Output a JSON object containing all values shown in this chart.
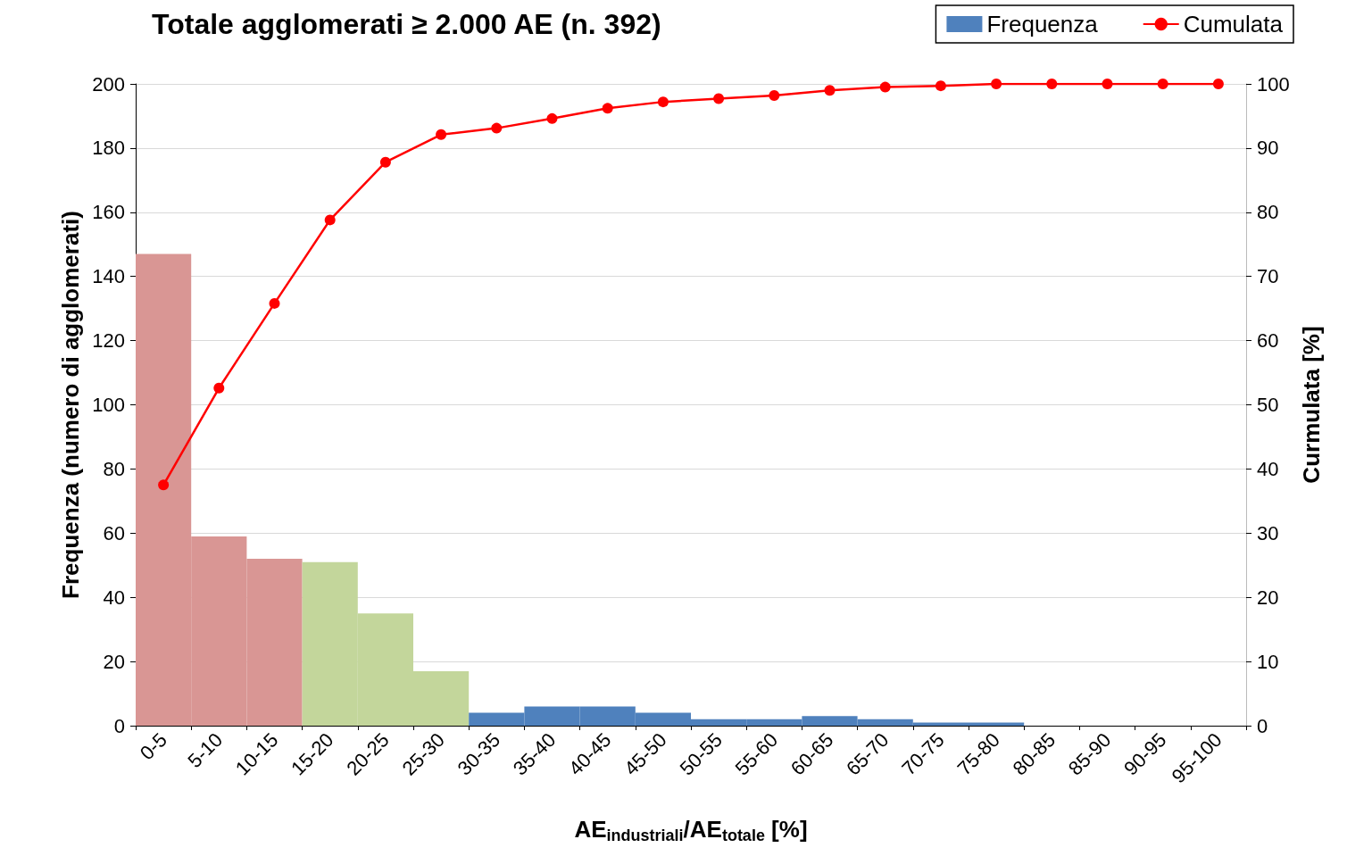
{
  "chart_data": {
    "type": "bar",
    "title": "Totale agglomerati ≥ 2.000 AE (n. 392)",
    "xlabel": "AE$_{industriali}$/AE$_{totale}$ [%]",
    "ylabel": "Frequenza (numero di agglomerati)",
    "y2label": "Curmulata [%]",
    "categories": [
      "0-5",
      "5-10",
      "10-15",
      "15-20",
      "20-25",
      "25-30",
      "30-35",
      "35-40",
      "40-45",
      "45-50",
      "50-55",
      "55-60",
      "60-65",
      "65-70",
      "70-75",
      "75-80",
      "80-85",
      "85-90",
      "90-95",
      "95-100"
    ],
    "series": [
      {
        "name": "Frequenza",
        "color": "#4f81bd",
        "colors": [
          "#d99694",
          "#d99694",
          "#d99694",
          "#c3d69b",
          "#c3d69b",
          "#c3d69b",
          "#4f81bd",
          "#4f81bd",
          "#4f81bd",
          "#4f81bd",
          "#4f81bd",
          "#4f81bd",
          "#4f81bd",
          "#4f81bd",
          "#4f81bd",
          "#4f81bd",
          "#4f81bd",
          "#4f81bd",
          "#4f81bd",
          "#4f81bd"
        ],
        "values": [
          147,
          59,
          52,
          51,
          35,
          17,
          4,
          6,
          6,
          4,
          2,
          2,
          3,
          2,
          1,
          1,
          0,
          0,
          0,
          0
        ]
      },
      {
        "name": "Cumulata",
        "type": "line",
        "axis": "y2",
        "color": "#ff0000",
        "marker": "circle",
        "values": [
          37.5,
          52.6,
          65.8,
          78.8,
          87.8,
          92.1,
          93.1,
          94.6,
          96.2,
          97.2,
          97.7,
          98.2,
          99.0,
          99.5,
          99.7,
          100,
          100,
          100,
          100,
          100
        ]
      }
    ],
    "ylim": [
      0,
      200
    ],
    "yticks": [
      0,
      20,
      40,
      60,
      80,
      100,
      120,
      140,
      160,
      180,
      200
    ],
    "y2lim": [
      0,
      100
    ],
    "y2ticks": [
      0,
      10,
      20,
      30,
      40,
      50,
      60,
      70,
      80,
      90,
      100
    ],
    "grid": "y",
    "legend": "top right"
  }
}
